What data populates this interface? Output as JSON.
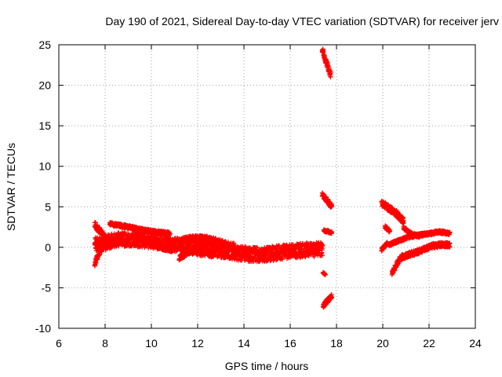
{
  "chart_data": {
    "type": "scatter",
    "title": "Day 190 of 2021, Sidereal Day-to-day VTEC variation (SDTVAR) for receiver jerv",
    "xlabel": "GPS time / hours",
    "ylabel": "SDTVAR / TECUs",
    "xlim": [
      6,
      24
    ],
    "ylim": [
      -10,
      25
    ],
    "xticks": [
      6,
      8,
      10,
      12,
      14,
      16,
      18,
      20,
      22,
      24
    ],
    "yticks": [
      -10,
      -5,
      0,
      5,
      10,
      15,
      20,
      25
    ],
    "grid": true,
    "marker": "plus",
    "color": "#ff0000",
    "segments": [
      {
        "x0": 7.55,
        "x1": 17.4,
        "y": [
          0.3,
          0.6,
          1.0,
          1.0,
          0.9,
          0.7,
          0.5,
          0.3,
          0.1,
          -0.1,
          -0.3,
          -0.4,
          -0.6,
          -0.8,
          -0.9,
          -0.9,
          -0.7,
          -0.5,
          -0.4,
          -0.3,
          -0.2
        ],
        "spread": 0.9
      },
      {
        "x0": 7.55,
        "x1": 8.3,
        "y": [
          2.8,
          1.5,
          0.3
        ],
        "spread": 0.4
      },
      {
        "x0": 7.55,
        "x1": 8.0,
        "y": [
          -2.0,
          -0.5,
          0.5
        ],
        "spread": 0.4
      },
      {
        "x0": 8.2,
        "x1": 10.8,
        "y": [
          2.9,
          2.6,
          2.2,
          1.9,
          1.7
        ],
        "spread": 0.2
      },
      {
        "x0": 9.2,
        "x1": 10.9,
        "y": [
          1.3,
          1.0,
          0.5,
          0.0,
          -0.3
        ],
        "spread": 0.3
      },
      {
        "x0": 11.2,
        "x1": 12.4,
        "y": [
          -1.3,
          -0.6,
          0.0,
          0.4
        ],
        "spread": 0.3
      },
      {
        "x0": 11.3,
        "x1": 13.6,
        "y": [
          0.8,
          1.1,
          1.0,
          0.5,
          0.1
        ],
        "spread": 0.4
      },
      {
        "x0": 17.38,
        "x1": 17.75,
        "y": [
          24.4,
          22.8,
          21.3
        ],
        "spread": 0.4
      },
      {
        "x0": 17.38,
        "x1": 17.8,
        "y": [
          6.5,
          5.8,
          5.0
        ],
        "spread": 0.3
      },
      {
        "x0": 17.45,
        "x1": 17.8,
        "y": [
          2.1,
          1.8
        ],
        "spread": 0.15
      },
      {
        "x0": 17.42,
        "x1": 17.52,
        "y": [
          -3.1,
          -3.4
        ],
        "spread": 0.1
      },
      {
        "x0": 17.42,
        "x1": 17.8,
        "y": [
          -7.2,
          -6.6,
          -6.0
        ],
        "spread": 0.3
      },
      {
        "x0": 19.95,
        "x1": 20.9,
        "y": [
          5.5,
          4.8,
          4.2,
          3.2
        ],
        "spread": 0.4
      },
      {
        "x0": 20.1,
        "x1": 20.3,
        "y": [
          2.5,
          2.0
        ],
        "spread": 0.2
      },
      {
        "x0": 20.9,
        "x1": 21.6,
        "y": [
          2.4,
          1.6,
          1.4
        ],
        "spread": 0.2
      },
      {
        "x0": 20.25,
        "x1": 22.9,
        "y": [
          0.3,
          0.8,
          1.3,
          1.5,
          1.7,
          1.9,
          1.7
        ],
        "spread": 0.2
      },
      {
        "x0": 19.95,
        "x1": 20.2,
        "y": [
          -0.3,
          0.5
        ],
        "spread": 0.2
      },
      {
        "x0": 20.4,
        "x1": 22.9,
        "y": [
          -3.2,
          -1.3,
          -0.9,
          -0.6,
          -0.2,
          0.2,
          0.3,
          0.3
        ],
        "spread": 0.3
      }
    ]
  }
}
